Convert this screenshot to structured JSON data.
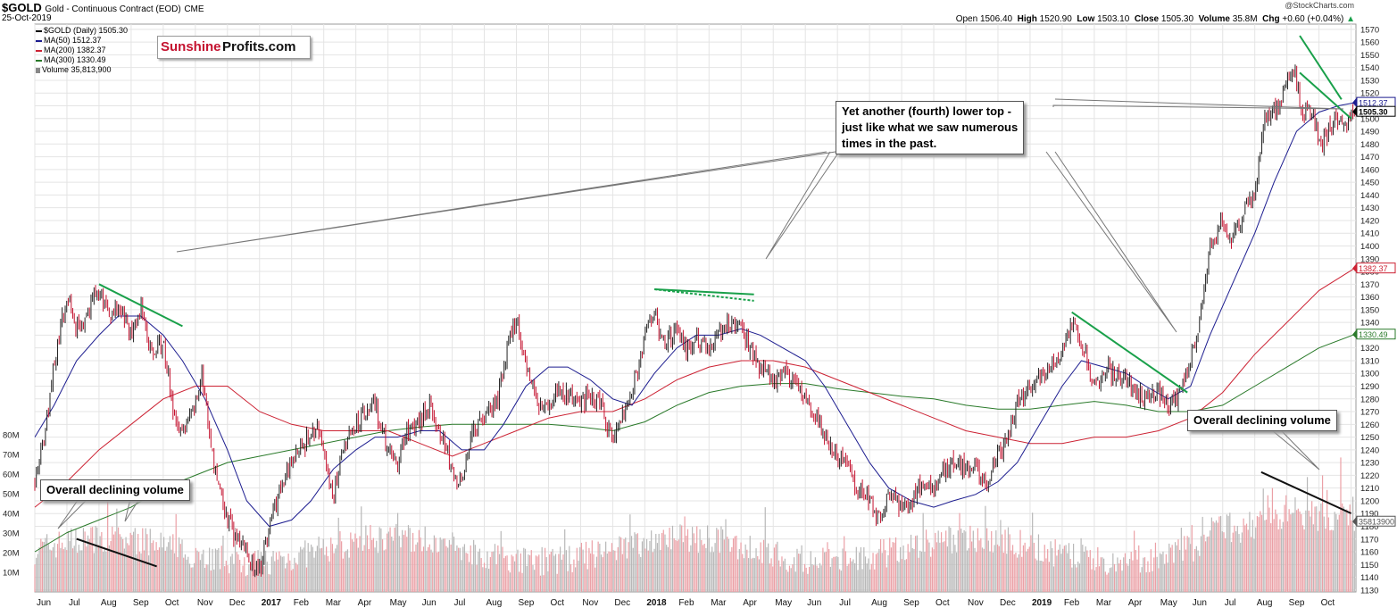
{
  "header": {
    "symbol": "$GOLD",
    "name": "Gold - Continuous Contract (EOD)",
    "exchange": "CME",
    "date": "25-Oct-2019",
    "brand": "@StockCharts.com",
    "open_label": "Open",
    "open": "1506.40",
    "high_label": "High",
    "high": "1520.90",
    "low_label": "Low",
    "low": "1503.10",
    "close_label": "Close",
    "close": "1505.30",
    "volume_label": "Volume",
    "volume": "35.8M",
    "chg_label": "Chg",
    "chg": "+0.60 (+0.04%)"
  },
  "legend": [
    {
      "text": "$GOLD (Daily) 1505.30",
      "color": "#000000"
    },
    {
      "text": "MA(50) 1512.37",
      "color": "#1c1c8f"
    },
    {
      "text": "MA(200) 1382.37",
      "color": "#cc2233"
    },
    {
      "text": "MA(300) 1330.49",
      "color": "#2a7a2a"
    },
    {
      "text": "Volume 35,813,900",
      "color": "#888888"
    }
  ],
  "logo": {
    "part1": "Sunshine",
    "part2": "Profits.com"
  },
  "annotations": {
    "lower_top": "Yet another (fourth) lower top -\njust like what we saw numerous\ntimes in the past.",
    "volume_right": "Overall declining volume",
    "volume_left": "Overall declining volume"
  },
  "colors": {
    "up": "#222222",
    "down": "#c4122f",
    "ma50": "#1c1c8f",
    "ma200": "#cc2233",
    "ma300": "#2a7a2a",
    "trendline": "#19a04a",
    "vol_up": "#b8b8b8",
    "vol_down": "#eba0a6",
    "grid": "#e4e4e4"
  },
  "chart_data": {
    "type": "candlestick",
    "price_ticks": [
      1130,
      1140,
      1150,
      1160,
      1170,
      1180,
      1190,
      1200,
      1210,
      1220,
      1230,
      1240,
      1250,
      1260,
      1270,
      1280,
      1290,
      1300,
      1310,
      1320,
      1330,
      1340,
      1350,
      1360,
      1370,
      1380,
      1390,
      1400,
      1410,
      1420,
      1430,
      1440,
      1450,
      1460,
      1470,
      1480,
      1490,
      1500,
      1510,
      1520,
      1530,
      1540,
      1550,
      1560,
      1570
    ],
    "volume_ticks": [
      "10M",
      "20M",
      "30M",
      "40M",
      "50M",
      "60M",
      "70M",
      "80M"
    ],
    "volume_tick_values": [
      10,
      20,
      30,
      40,
      50,
      60,
      70,
      80
    ],
    "price_range": [
      1125,
      1572
    ],
    "volume_range": [
      0,
      90
    ],
    "value_labels": [
      {
        "text": "1512.37",
        "value": 1512.37,
        "color": "#1c1c8f"
      },
      {
        "text": "1505.30",
        "value": 1505.3,
        "color": "#000000"
      },
      {
        "text": "1382.37",
        "value": 1382.37,
        "color": "#cc2233"
      },
      {
        "text": "1330.49",
        "value": 1330.49,
        "color": "#2a7a2a"
      },
      {
        "text": "35813900",
        "volume": 35.8,
        "color": "#555555"
      }
    ],
    "x_labels": [
      {
        "text": "Jun",
        "month": 0
      },
      {
        "text": "Jul",
        "month": 1
      },
      {
        "text": "Aug",
        "month": 2
      },
      {
        "text": "Sep",
        "month": 3
      },
      {
        "text": "Oct",
        "month": 4
      },
      {
        "text": "Nov",
        "month": 5
      },
      {
        "text": "Dec",
        "month": 6
      },
      {
        "text": "2017",
        "month": 7,
        "bold": true
      },
      {
        "text": "Feb",
        "month": 8
      },
      {
        "text": "Mar",
        "month": 9
      },
      {
        "text": "Apr",
        "month": 10
      },
      {
        "text": "May",
        "month": 11
      },
      {
        "text": "Jun",
        "month": 12
      },
      {
        "text": "Jul",
        "month": 13
      },
      {
        "text": "Aug",
        "month": 14
      },
      {
        "text": "Sep",
        "month": 15
      },
      {
        "text": "Oct",
        "month": 16
      },
      {
        "text": "Nov",
        "month": 17
      },
      {
        "text": "Dec",
        "month": 18
      },
      {
        "text": "2018",
        "month": 19,
        "bold": true
      },
      {
        "text": "Feb",
        "month": 20
      },
      {
        "text": "Mar",
        "month": 21
      },
      {
        "text": "Apr",
        "month": 22
      },
      {
        "text": "May",
        "month": 23
      },
      {
        "text": "Jun",
        "month": 24
      },
      {
        "text": "Jul",
        "month": 25
      },
      {
        "text": "Aug",
        "month": 26
      },
      {
        "text": "Sep",
        "month": 27
      },
      {
        "text": "Oct",
        "month": 28
      },
      {
        "text": "Nov",
        "month": 29
      },
      {
        "text": "Dec",
        "month": 30
      },
      {
        "text": "2019",
        "month": 31,
        "bold": true
      },
      {
        "text": "Feb",
        "month": 32
      },
      {
        "text": "Mar",
        "month": 33
      },
      {
        "text": "Apr",
        "month": 34
      },
      {
        "text": "May",
        "month": 35
      },
      {
        "text": "Jun",
        "month": 36
      },
      {
        "text": "Jul",
        "month": 37
      },
      {
        "text": "Aug",
        "month": 38
      },
      {
        "text": "Sep",
        "month": 39
      },
      {
        "text": "Oct",
        "month": 40
      }
    ],
    "price_path": [
      [
        0,
        1215
      ],
      [
        0.3,
        1250
      ],
      [
        0.6,
        1310
      ],
      [
        1.0,
        1360
      ],
      [
        1.3,
        1335
      ],
      [
        1.6,
        1345
      ],
      [
        2.0,
        1365
      ],
      [
        2.3,
        1345
      ],
      [
        2.6,
        1355
      ],
      [
        3.0,
        1330
      ],
      [
        3.3,
        1350
      ],
      [
        3.6,
        1320
      ],
      [
        4.0,
        1325
      ],
      [
        4.3,
        1270
      ],
      [
        4.6,
        1255
      ],
      [
        5.0,
        1275
      ],
      [
        5.2,
        1300
      ],
      [
        5.5,
        1240
      ],
      [
        6.0,
        1185
      ],
      [
        6.5,
        1160
      ],
      [
        7.0,
        1145
      ],
      [
        7.3,
        1180
      ],
      [
        7.7,
        1215
      ],
      [
        8.0,
        1230
      ],
      [
        8.4,
        1245
      ],
      [
        8.8,
        1255
      ],
      [
        9.0,
        1235
      ],
      [
        9.3,
        1205
      ],
      [
        9.6,
        1240
      ],
      [
        10.0,
        1260
      ],
      [
        10.3,
        1270
      ],
      [
        10.6,
        1275
      ],
      [
        11.0,
        1240
      ],
      [
        11.3,
        1230
      ],
      [
        11.6,
        1255
      ],
      [
        12.0,
        1265
      ],
      [
        12.3,
        1275
      ],
      [
        12.6,
        1255
      ],
      [
        13.0,
        1225
      ],
      [
        13.3,
        1215
      ],
      [
        13.6,
        1250
      ],
      [
        14.0,
        1265
      ],
      [
        14.4,
        1275
      ],
      [
        14.8,
        1330
      ],
      [
        15.0,
        1345
      ],
      [
        15.3,
        1305
      ],
      [
        15.6,
        1280
      ],
      [
        16.0,
        1275
      ],
      [
        16.3,
        1285
      ],
      [
        16.7,
        1280
      ],
      [
        17.0,
        1275
      ],
      [
        17.3,
        1285
      ],
      [
        17.6,
        1275
      ],
      [
        18.0,
        1250
      ],
      [
        18.3,
        1265
      ],
      [
        18.6,
        1285
      ],
      [
        19.0,
        1330
      ],
      [
        19.3,
        1345
      ],
      [
        19.6,
        1325
      ],
      [
        20.0,
        1330
      ],
      [
        20.3,
        1320
      ],
      [
        20.6,
        1325
      ],
      [
        21.0,
        1320
      ],
      [
        21.3,
        1330
      ],
      [
        21.6,
        1340
      ],
      [
        22.0,
        1335
      ],
      [
        22.3,
        1320
      ],
      [
        22.6,
        1305
      ],
      [
        23.0,
        1295
      ],
      [
        23.3,
        1300
      ],
      [
        23.6,
        1295
      ],
      [
        24.0,
        1280
      ],
      [
        24.3,
        1270
      ],
      [
        24.6,
        1250
      ],
      [
        25.0,
        1235
      ],
      [
        25.3,
        1230
      ],
      [
        25.6,
        1210
      ],
      [
        26.0,
        1200
      ],
      [
        26.3,
        1185
      ],
      [
        26.6,
        1205
      ],
      [
        27.0,
        1195
      ],
      [
        27.3,
        1200
      ],
      [
        27.6,
        1215
      ],
      [
        28.0,
        1210
      ],
      [
        28.3,
        1225
      ],
      [
        28.6,
        1230
      ],
      [
        29.0,
        1225
      ],
      [
        29.3,
        1225
      ],
      [
        29.6,
        1210
      ],
      [
        30.0,
        1235
      ],
      [
        30.3,
        1250
      ],
      [
        30.6,
        1275
      ],
      [
        31.0,
        1290
      ],
      [
        31.3,
        1295
      ],
      [
        31.6,
        1300
      ],
      [
        32.0,
        1320
      ],
      [
        32.3,
        1340
      ],
      [
        32.6,
        1325
      ],
      [
        33.0,
        1290
      ],
      [
        33.3,
        1305
      ],
      [
        33.6,
        1300
      ],
      [
        34.0,
        1295
      ],
      [
        34.3,
        1285
      ],
      [
        34.6,
        1280
      ],
      [
        35.0,
        1285
      ],
      [
        35.3,
        1275
      ],
      [
        35.6,
        1280
      ],
      [
        36.0,
        1310
      ],
      [
        36.3,
        1345
      ],
      [
        36.6,
        1400
      ],
      [
        37.0,
        1420
      ],
      [
        37.3,
        1405
      ],
      [
        37.6,
        1420
      ],
      [
        38.0,
        1440
      ],
      [
        38.3,
        1500
      ],
      [
        38.6,
        1505
      ],
      [
        39.0,
        1530
      ],
      [
        39.2,
        1540
      ],
      [
        39.5,
        1505
      ],
      [
        39.8,
        1505
      ],
      [
        40.0,
        1480
      ],
      [
        40.3,
        1490
      ],
      [
        40.6,
        1500
      ],
      [
        40.9,
        1495
      ],
      [
        41.1,
        1505
      ]
    ],
    "ma50": [
      [
        0,
        1250
      ],
      [
        0.6,
        1275
      ],
      [
        1.3,
        1310
      ],
      [
        2.0,
        1330
      ],
      [
        2.6,
        1345
      ],
      [
        3.3,
        1345
      ],
      [
        4.0,
        1330
      ],
      [
        4.6,
        1310
      ],
      [
        5.3,
        1280
      ],
      [
        6.0,
        1240
      ],
      [
        6.6,
        1200
      ],
      [
        7.3,
        1180
      ],
      [
        8.0,
        1185
      ],
      [
        8.6,
        1200
      ],
      [
        9.3,
        1225
      ],
      [
        10.0,
        1240
      ],
      [
        10.6,
        1250
      ],
      [
        11.3,
        1250
      ],
      [
        12.0,
        1255
      ],
      [
        12.6,
        1255
      ],
      [
        13.3,
        1240
      ],
      [
        14.0,
        1240
      ],
      [
        14.6,
        1260
      ],
      [
        15.3,
        1290
      ],
      [
        16.0,
        1305
      ],
      [
        16.6,
        1305
      ],
      [
        17.3,
        1295
      ],
      [
        18.0,
        1280
      ],
      [
        18.6,
        1275
      ],
      [
        19.3,
        1300
      ],
      [
        20.0,
        1320
      ],
      [
        20.6,
        1330
      ],
      [
        21.3,
        1330
      ],
      [
        22.0,
        1335
      ],
      [
        22.6,
        1330
      ],
      [
        23.3,
        1320
      ],
      [
        24.0,
        1310
      ],
      [
        24.6,
        1290
      ],
      [
        25.3,
        1260
      ],
      [
        26.0,
        1230
      ],
      [
        26.6,
        1210
      ],
      [
        27.3,
        1200
      ],
      [
        28.0,
        1195
      ],
      [
        28.6,
        1200
      ],
      [
        29.3,
        1205
      ],
      [
        30.0,
        1215
      ],
      [
        30.6,
        1230
      ],
      [
        31.3,
        1260
      ],
      [
        32.0,
        1290
      ],
      [
        32.6,
        1310
      ],
      [
        33.3,
        1305
      ],
      [
        34.0,
        1300
      ],
      [
        34.6,
        1290
      ],
      [
        35.3,
        1280
      ],
      [
        36.0,
        1290
      ],
      [
        36.6,
        1330
      ],
      [
        37.3,
        1370
      ],
      [
        38.0,
        1410
      ],
      [
        38.6,
        1450
      ],
      [
        39.3,
        1490
      ],
      [
        40.0,
        1505
      ],
      [
        40.6,
        1510
      ],
      [
        41.1,
        1512.37
      ]
    ],
    "ma200": [
      [
        0,
        1195
      ],
      [
        1.0,
        1215
      ],
      [
        2.0,
        1240
      ],
      [
        3.0,
        1260
      ],
      [
        4.0,
        1280
      ],
      [
        5.0,
        1290
      ],
      [
        6.0,
        1290
      ],
      [
        7.0,
        1270
      ],
      [
        8.0,
        1260
      ],
      [
        9.0,
        1255
      ],
      [
        10.0,
        1255
      ],
      [
        11.0,
        1255
      ],
      [
        12.0,
        1245
      ],
      [
        13.0,
        1235
      ],
      [
        14.0,
        1245
      ],
      [
        15.0,
        1255
      ],
      [
        16.0,
        1265
      ],
      [
        17.0,
        1270
      ],
      [
        18.0,
        1270
      ],
      [
        19.0,
        1280
      ],
      [
        20.0,
        1295
      ],
      [
        21.0,
        1305
      ],
      [
        22.0,
        1310
      ],
      [
        23.0,
        1310
      ],
      [
        24.0,
        1305
      ],
      [
        25.0,
        1295
      ],
      [
        26.0,
        1285
      ],
      [
        27.0,
        1275
      ],
      [
        28.0,
        1265
      ],
      [
        29.0,
        1255
      ],
      [
        30.0,
        1250
      ],
      [
        31.0,
        1245
      ],
      [
        32.0,
        1245
      ],
      [
        33.0,
        1250
      ],
      [
        34.0,
        1250
      ],
      [
        35.0,
        1255
      ],
      [
        36.0,
        1265
      ],
      [
        37.0,
        1285
      ],
      [
        38.0,
        1315
      ],
      [
        39.0,
        1340
      ],
      [
        40.0,
        1365
      ],
      [
        41.1,
        1382.37
      ]
    ],
    "ma300": [
      [
        0,
        1160
      ],
      [
        1.0,
        1175
      ],
      [
        2.0,
        1185
      ],
      [
        3.0,
        1195
      ],
      [
        4.0,
        1210
      ],
      [
        5.0,
        1220
      ],
      [
        6.0,
        1230
      ],
      [
        7.0,
        1235
      ],
      [
        8.0,
        1240
      ],
      [
        9.0,
        1245
      ],
      [
        10.0,
        1250
      ],
      [
        11.0,
        1255
      ],
      [
        12.0,
        1258
      ],
      [
        13.0,
        1260
      ],
      [
        14.0,
        1260
      ],
      [
        15.0,
        1260
      ],
      [
        16.0,
        1260
      ],
      [
        17.0,
        1258
      ],
      [
        18.0,
        1255
      ],
      [
        19.0,
        1262
      ],
      [
        20.0,
        1275
      ],
      [
        21.0,
        1285
      ],
      [
        22.0,
        1290
      ],
      [
        23.0,
        1292
      ],
      [
        24.0,
        1292
      ],
      [
        25.0,
        1288
      ],
      [
        26.0,
        1285
      ],
      [
        27.0,
        1282
      ],
      [
        28.0,
        1280
      ],
      [
        29.0,
        1275
      ],
      [
        30.0,
        1272
      ],
      [
        31.0,
        1272
      ],
      [
        32.0,
        1275
      ],
      [
        33.0,
        1278
      ],
      [
        34.0,
        1275
      ],
      [
        35.0,
        1270
      ],
      [
        36.0,
        1270
      ],
      [
        37.0,
        1275
      ],
      [
        38.0,
        1290
      ],
      [
        39.0,
        1305
      ],
      [
        40.0,
        1320
      ],
      [
        41.1,
        1330.49
      ]
    ],
    "trendlines": [
      {
        "x1": 2.0,
        "y1": 1370,
        "x2": 4.6,
        "y2": 1337,
        "color": "#19a04a"
      },
      {
        "x1": 19.3,
        "y1": 1366,
        "x2": 22.4,
        "y2": 1362,
        "color": "#19a04a"
      },
      {
        "x1": 19.3,
        "y1": 1366,
        "x2": 22.4,
        "y2": 1357,
        "color": "#19a04a",
        "dash": true
      },
      {
        "x1": 32.3,
        "y1": 1348,
        "x2": 35.9,
        "y2": 1285,
        "color": "#19a04a"
      },
      {
        "x1": 39.4,
        "y1": 1565,
        "x2": 40.7,
        "y2": 1515,
        "color": "#19a04a"
      },
      {
        "x1": 39.4,
        "y1": 1536,
        "x2": 41.0,
        "y2": 1500,
        "color": "#19a04a"
      }
    ],
    "volume_trendlines": [
      {
        "x1": 1.3,
        "v1": 27,
        "x2": 3.8,
        "v2": 13
      },
      {
        "x1": 38.2,
        "v1": 61,
        "x2": 41.0,
        "v2": 40
      }
    ]
  }
}
